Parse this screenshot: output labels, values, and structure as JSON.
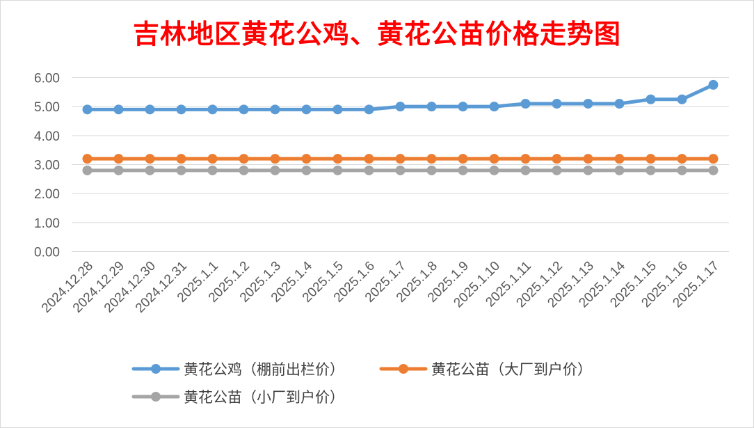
{
  "chart_data": {
    "type": "line",
    "title": "吉林地区黄花公鸡、黄花公苗价格走势图",
    "categories": [
      "2024.12.28",
      "2024.12.29",
      "2024.12.30",
      "2024.12.31",
      "2025.1.1",
      "2025.1.2",
      "2025.1.3",
      "2025.1.4",
      "2025.1.5",
      "2025.1.6",
      "2025.1.7",
      "2025.1.8",
      "2025.1.9",
      "2025.1.10",
      "2025.1.11",
      "2025.1.12",
      "2025.1.13",
      "2025.1.14",
      "2025.1.15",
      "2025.1.16",
      "2025.1.17"
    ],
    "ylim": [
      0,
      6
    ],
    "yticks": [
      "0.00",
      "1.00",
      "2.00",
      "3.00",
      "4.00",
      "5.00",
      "6.00"
    ],
    "grid": true,
    "legend_position": "bottom",
    "series": [
      {
        "name": "黄花公鸡（棚前出栏价）",
        "color": "#5b9bd5",
        "values": [
          4.9,
          4.9,
          4.9,
          4.9,
          4.9,
          4.9,
          4.9,
          4.9,
          4.9,
          4.9,
          5.0,
          5.0,
          5.0,
          5.0,
          5.1,
          5.1,
          5.1,
          5.1,
          5.25,
          5.25,
          5.75
        ]
      },
      {
        "name": "黄花公苗（大厂到户价）",
        "color": "#ed7d31",
        "values": [
          3.2,
          3.2,
          3.2,
          3.2,
          3.2,
          3.2,
          3.2,
          3.2,
          3.2,
          3.2,
          3.2,
          3.2,
          3.2,
          3.2,
          3.2,
          3.2,
          3.2,
          3.2,
          3.2,
          3.2,
          3.2
        ]
      },
      {
        "name": "黄花公苗（小厂到户价）",
        "color": "#a5a5a5",
        "values": [
          2.8,
          2.8,
          2.8,
          2.8,
          2.8,
          2.8,
          2.8,
          2.8,
          2.8,
          2.8,
          2.8,
          2.8,
          2.8,
          2.8,
          2.8,
          2.8,
          2.8,
          2.8,
          2.8,
          2.8,
          2.8
        ]
      }
    ]
  }
}
